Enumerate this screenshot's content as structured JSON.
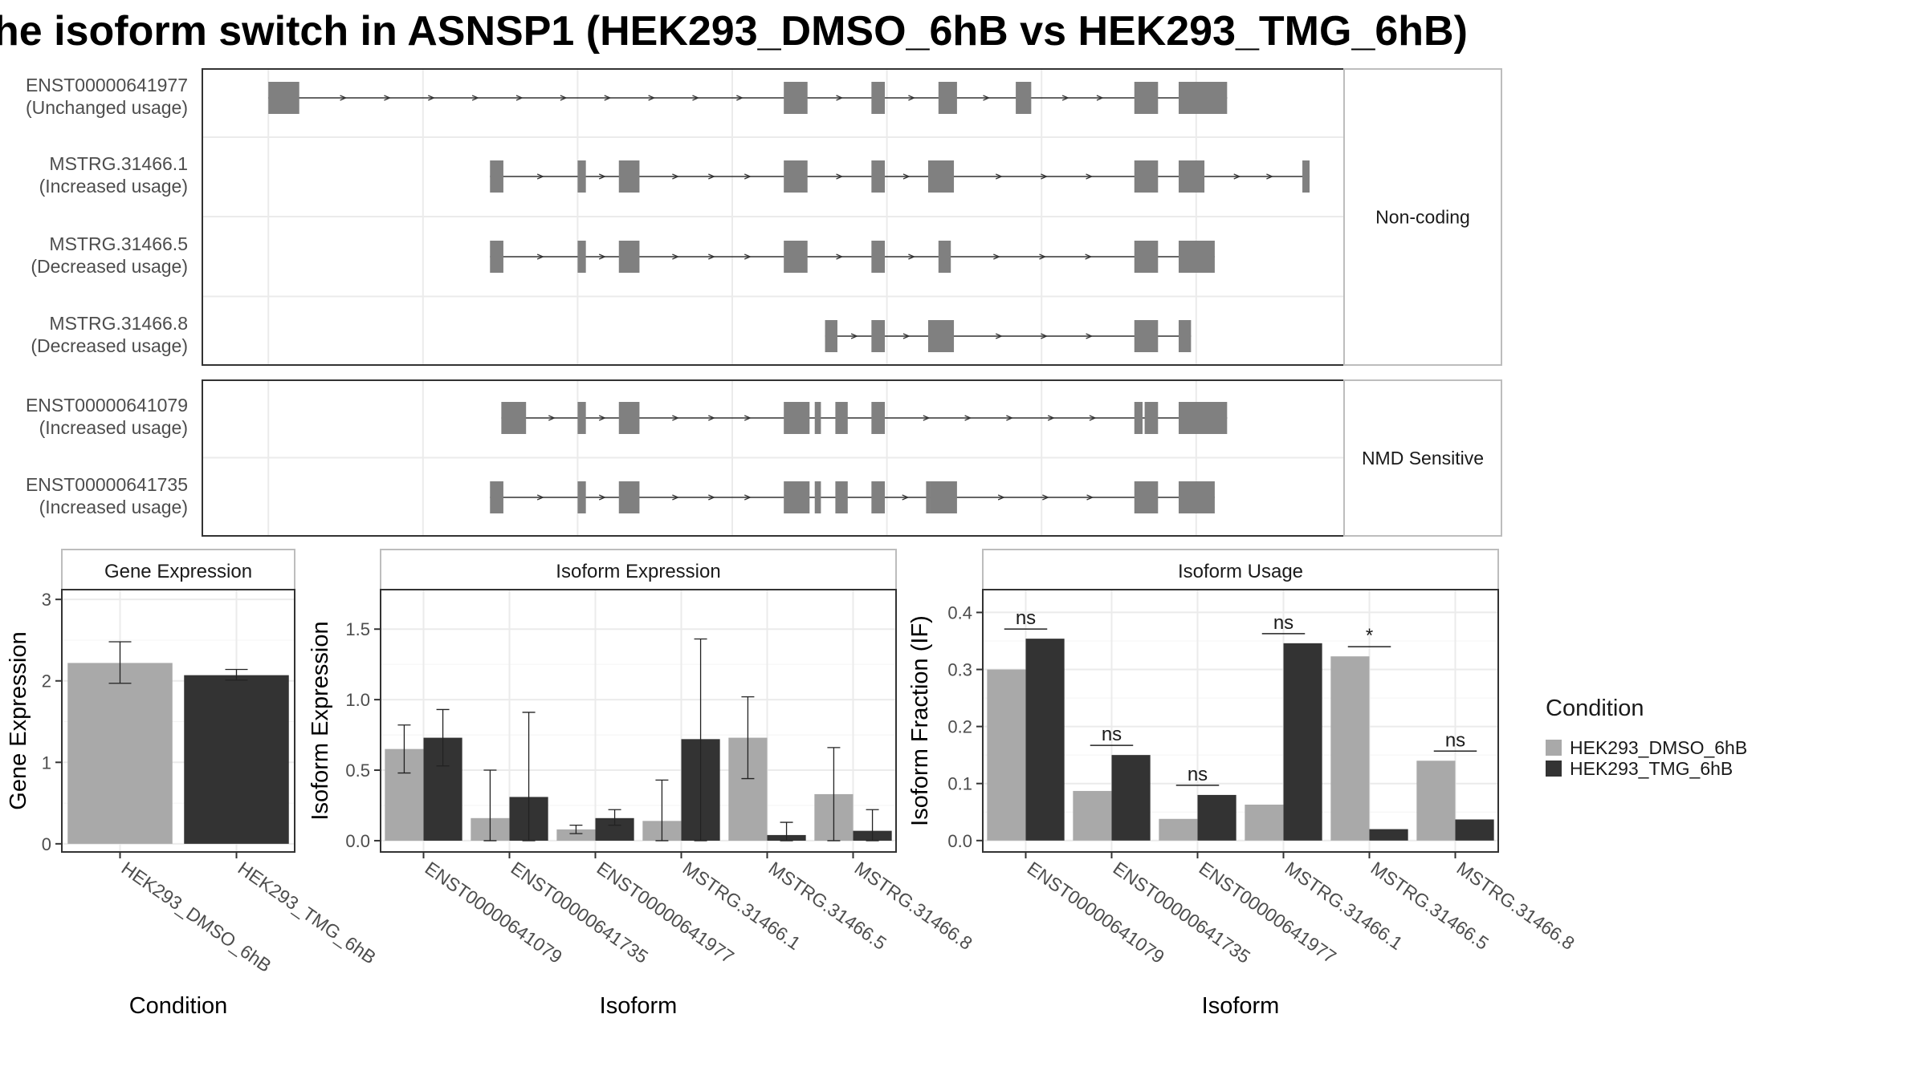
{
  "title": "he isoform switch in ASNSP1 (HEK293_DMSO_6hB vs HEK293_TMG_6hB)",
  "structure": {
    "panels": [
      {
        "strip": "Non-coding",
        "rows": [
          {
            "id": "ENST00000641977",
            "usage": "(Unchanged usage)",
            "exons": [
              [
                1.0,
                1.3
              ],
              [
                6.0,
                6.23
              ],
              [
                6.85,
                6.98
              ],
              [
                7.5,
                7.68
              ],
              [
                8.25,
                8.4
              ],
              [
                9.4,
                9.63
              ],
              [
                9.83,
                10.3
              ]
            ]
          },
          {
            "id": "MSTRG.31466.1",
            "usage": "(Increased usage)",
            "exons": [
              [
                3.15,
                3.28
              ],
              [
                4.0,
                4.08
              ],
              [
                4.4,
                4.6
              ],
              [
                6.0,
                6.23
              ],
              [
                6.85,
                6.98
              ],
              [
                7.4,
                7.65
              ],
              [
                9.4,
                9.63
              ],
              [
                9.83,
                10.08
              ],
              [
                11.03,
                11.1
              ]
            ]
          },
          {
            "id": "MSTRG.31466.5",
            "usage": "(Decreased usage)",
            "exons": [
              [
                3.15,
                3.28
              ],
              [
                4.0,
                4.08
              ],
              [
                4.4,
                4.6
              ],
              [
                6.0,
                6.23
              ],
              [
                6.85,
                6.98
              ],
              [
                7.5,
                7.62
              ],
              [
                9.4,
                9.63
              ],
              [
                9.83,
                10.18
              ]
            ]
          },
          {
            "id": "MSTRG.31466.8",
            "usage": "(Decreased usage)",
            "exons": [
              [
                6.4,
                6.52
              ],
              [
                6.85,
                6.98
              ],
              [
                7.4,
                7.65
              ],
              [
                9.4,
                9.63
              ],
              [
                9.83,
                9.95
              ]
            ]
          }
        ]
      },
      {
        "strip": "NMD Sensitive",
        "rows": [
          {
            "id": "ENST00000641079",
            "usage": "(Increased usage)",
            "exons": [
              [
                3.26,
                3.5
              ],
              [
                4.0,
                4.08
              ],
              [
                4.4,
                4.6
              ],
              [
                6.0,
                6.25
              ],
              [
                6.3,
                6.36
              ],
              [
                6.5,
                6.62
              ],
              [
                6.85,
                6.98
              ],
              [
                9.4,
                9.48
              ],
              [
                9.5,
                9.63
              ],
              [
                9.83,
                10.3
              ]
            ]
          },
          {
            "id": "ENST00000641735",
            "usage": "(Increased usage)",
            "exons": [
              [
                3.15,
                3.28
              ],
              [
                4.0,
                4.08
              ],
              [
                4.4,
                4.6
              ],
              [
                6.0,
                6.25
              ],
              [
                6.3,
                6.36
              ],
              [
                6.5,
                6.62
              ],
              [
                6.85,
                6.98
              ],
              [
                7.38,
                7.42
              ],
              [
                7.42,
                7.68
              ],
              [
                9.4,
                9.63
              ],
              [
                9.83,
                10.18
              ]
            ]
          }
        ]
      }
    ]
  },
  "chart_data": [
    {
      "type": "bar",
      "title": "Gene Expression",
      "xlabel": "Condition",
      "ylabel": "Gene Expression",
      "categories": [
        "HEK293_DMSO_6hB",
        "HEK293_TMG_6hB"
      ],
      "values": [
        2.22,
        2.07
      ],
      "errors": [
        [
          1.97,
          2.48
        ],
        [
          2.01,
          2.14
        ]
      ],
      "ylim": [
        -0.1,
        3.12
      ],
      "yticks": [
        0,
        1,
        2,
        3
      ],
      "colors": [
        "#a9a9a9",
        "#333333"
      ]
    },
    {
      "type": "bar",
      "title": "Isoform Expression",
      "xlabel": "Isoform",
      "ylabel": "Isoform Expression",
      "categories": [
        "ENST00000641079",
        "ENST00000641735",
        "ENST00000641977",
        "MSTRG.31466.1",
        "MSTRG.31466.5",
        "MSTRG.31466.8"
      ],
      "series": [
        {
          "name": "HEK293_DMSO_6hB",
          "values": [
            0.65,
            0.16,
            0.08,
            0.14,
            0.73,
            0.33
          ],
          "errors": [
            [
              0.48,
              0.82
            ],
            [
              0.0,
              0.5
            ],
            [
              0.05,
              0.11
            ],
            [
              0.0,
              0.43
            ],
            [
              0.44,
              1.02
            ],
            [
              0.0,
              0.66
            ]
          ]
        },
        {
          "name": "HEK293_TMG_6hB",
          "values": [
            0.73,
            0.31,
            0.16,
            0.72,
            0.04,
            0.07
          ],
          "errors": [
            [
              0.53,
              0.93
            ],
            [
              0.0,
              0.91
            ],
            [
              0.11,
              0.22
            ],
            [
              0.0,
              1.43
            ],
            [
              0.0,
              0.13
            ],
            [
              0.0,
              0.22
            ]
          ]
        }
      ],
      "ylim": [
        -0.08,
        1.78
      ],
      "yticks": [
        0.0,
        0.5,
        1.0,
        1.5
      ],
      "colors": [
        "#a9a9a9",
        "#333333"
      ]
    },
    {
      "type": "bar",
      "title": "Isoform Usage",
      "xlabel": "Isoform",
      "ylabel": "Isoform Fraction (IF)",
      "categories": [
        "ENST00000641079",
        "ENST00000641735",
        "ENST00000641977",
        "MSTRG.31466.1",
        "MSTRG.31466.5",
        "MSTRG.31466.8"
      ],
      "series": [
        {
          "name": "HEK293_DMSO_6hB",
          "values": [
            0.3,
            0.087,
            0.038,
            0.063,
            0.323,
            0.14
          ]
        },
        {
          "name": "HEK293_TMG_6hB",
          "values": [
            0.354,
            0.15,
            0.08,
            0.346,
            0.02,
            0.037
          ]
        }
      ],
      "annotations": [
        "ns",
        "ns",
        "ns",
        "ns",
        "*",
        "ns"
      ],
      "ylim": [
        -0.02,
        0.44
      ],
      "yticks": [
        0.0,
        0.1,
        0.2,
        0.3,
        0.4
      ],
      "colors": [
        "#a9a9a9",
        "#333333"
      ]
    }
  ],
  "legend": {
    "title": "Condition",
    "items": [
      {
        "label": "HEK293_DMSO_6hB",
        "color": "#a9a9a9"
      },
      {
        "label": "HEK293_TMG_6hB",
        "color": "#333333"
      }
    ]
  }
}
